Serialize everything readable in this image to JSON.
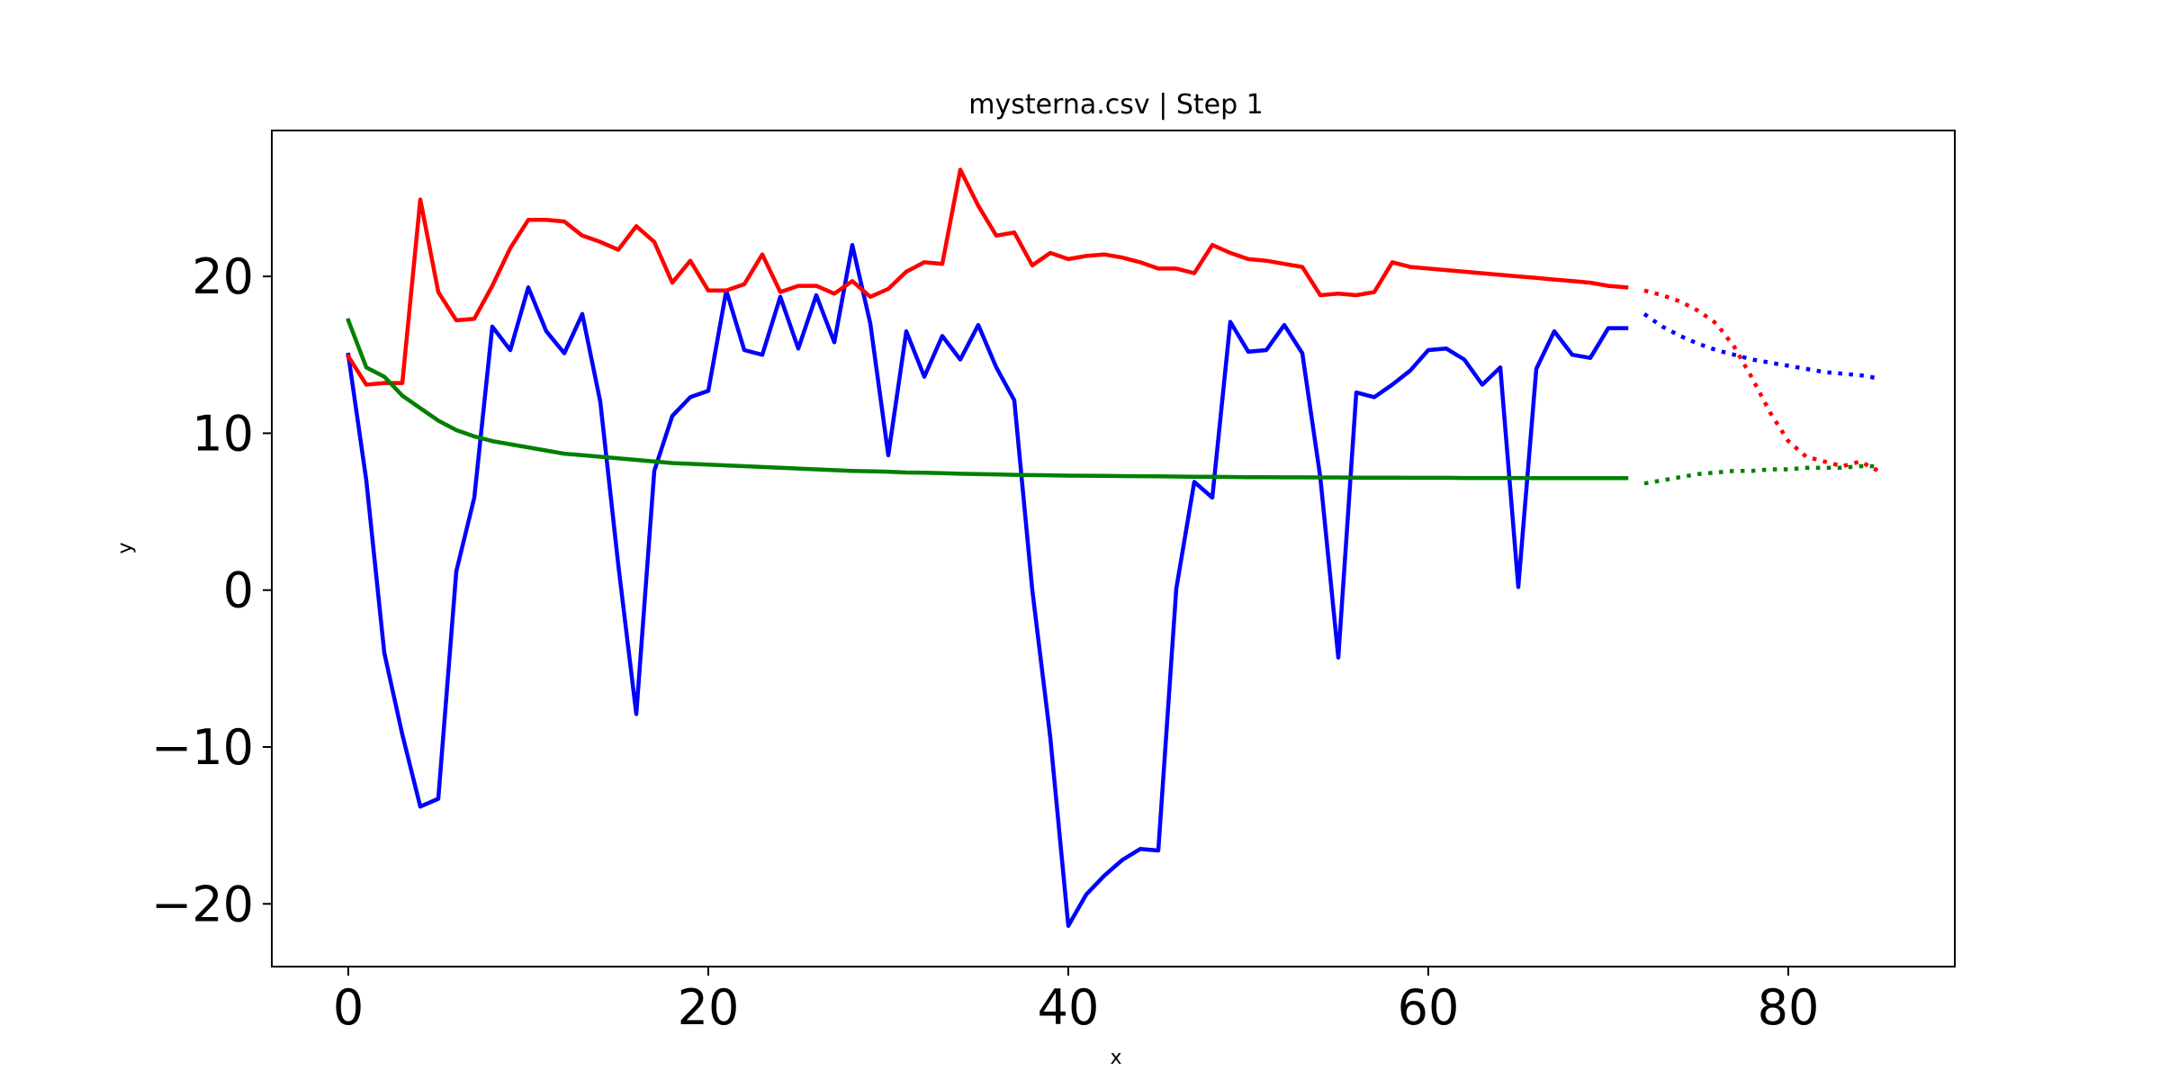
{
  "chart_data": {
    "type": "line",
    "title": "mysterna.csv | Step 1",
    "xlabel": "x",
    "ylabel": "y",
    "xlim": [
      -4.25,
      89.25
    ],
    "ylim": [
      -24,
      29.3
    ],
    "xticks": [
      0,
      20,
      40,
      60,
      80
    ],
    "yticks": [
      -20,
      -10,
      0,
      10,
      20
    ],
    "xtick_labels": [
      "0",
      "20",
      "40",
      "60",
      "80"
    ],
    "ytick_labels": [
      "−20",
      "−10",
      "0",
      "10",
      "20"
    ],
    "grid": false,
    "legend": false,
    "series": [
      {
        "color": "#0000ff",
        "style": "solid",
        "x": [
          0,
          1,
          2,
          3,
          4,
          5,
          6,
          7,
          8,
          9,
          10,
          11,
          12,
          13,
          14,
          15,
          16,
          17,
          18,
          19,
          20,
          21,
          22,
          23,
          24,
          25,
          26,
          27,
          28,
          29,
          30,
          31,
          32,
          33,
          34,
          35,
          36,
          37,
          38,
          39,
          40,
          41,
          42,
          43,
          44,
          45,
          46,
          47,
          48,
          49,
          50,
          51,
          52,
          53,
          54,
          55,
          56,
          57,
          58,
          59,
          60,
          61,
          62,
          63,
          64,
          65,
          66,
          67,
          68,
          69,
          70,
          71
        ],
        "y": [
          15,
          7,
          -4,
          -9.2,
          -13.8,
          -13.3,
          1.2,
          5.9,
          16.8,
          15.3,
          19.3,
          16.5,
          15.1,
          17.6,
          12,
          1.6,
          -7.9,
          7.6,
          11.1,
          12.3,
          12.7,
          19.1,
          15.3,
          15,
          18.7,
          15.4,
          18.8,
          15.8,
          22,
          17,
          8.6,
          16.5,
          13.6,
          16.2,
          14.7,
          16.9,
          14.2,
          12.1,
          0,
          -9.4,
          -21.4,
          -19.4,
          -18.2,
          -17.2,
          -16.5,
          -16.6,
          0.1,
          6.9,
          5.9,
          17.1,
          15.2,
          15.3,
          16.9,
          15.1,
          7.2,
          -4.3,
          12.6,
          12.3,
          13.1,
          14,
          15.3,
          15.4,
          14.7,
          13.1,
          14.2,
          0.2,
          14.1,
          16.5,
          15,
          14.8,
          16.7,
          16.7
        ]
      },
      {
        "color": "#0000ff",
        "style": "dotted",
        "x": [
          72,
          73,
          74,
          75,
          76,
          77,
          78,
          79,
          80,
          81,
          82,
          83,
          84,
          85
        ],
        "y": [
          17.6,
          16.8,
          16.2,
          15.7,
          15.3,
          15,
          14.7,
          14.5,
          14.3,
          14.1,
          13.9,
          13.8,
          13.7,
          13.5
        ]
      },
      {
        "color": "#ff0000",
        "style": "solid",
        "x": [
          0,
          1,
          2,
          3,
          4,
          5,
          6,
          7,
          8,
          9,
          10,
          11,
          12,
          13,
          14,
          15,
          16,
          17,
          18,
          19,
          20,
          21,
          22,
          23,
          24,
          25,
          26,
          27,
          28,
          29,
          30,
          31,
          32,
          33,
          34,
          35,
          36,
          37,
          38,
          39,
          40,
          41,
          42,
          43,
          44,
          45,
          46,
          47,
          48,
          49,
          50,
          51,
          52,
          53,
          54,
          55,
          56,
          57,
          58,
          59,
          60,
          61,
          62,
          63,
          64,
          65,
          66,
          67,
          68,
          69,
          70,
          71
        ],
        "y": [
          14.9,
          13.1,
          13.2,
          13.2,
          24.9,
          19,
          17.2,
          17.3,
          19.4,
          21.8,
          23.6,
          23.6,
          23.5,
          22.6,
          22.2,
          21.7,
          23.2,
          22.2,
          19.6,
          21,
          19.1,
          19.1,
          19.5,
          21.4,
          19,
          19.4,
          19.4,
          18.9,
          19.7,
          18.7,
          19.2,
          20.3,
          20.9,
          20.8,
          26.8,
          24.5,
          22.6,
          22.8,
          20.7,
          21.5,
          21.1,
          21.3,
          21.4,
          21.2,
          20.9,
          20.5,
          20.5,
          20.2,
          22,
          21.5,
          21.1,
          21,
          20.8,
          20.6,
          18.8,
          18.9,
          18.8,
          19,
          20.9,
          20.6,
          20.5,
          20.4,
          20.3,
          20.2,
          20.1,
          20,
          19.9,
          19.8,
          19.7,
          19.6,
          19.4,
          19.3
        ]
      },
      {
        "color": "#ff0000",
        "style": "dotted",
        "x": [
          72,
          73,
          74,
          75,
          76,
          77,
          78,
          79,
          80,
          81,
          82,
          83,
          84,
          85
        ],
        "y": [
          19.1,
          18.8,
          18.4,
          17.8,
          17,
          15.5,
          13.5,
          11.3,
          9.5,
          8.5,
          8.2,
          7.9,
          8.2,
          7.6
        ]
      },
      {
        "color": "#008000",
        "style": "solid",
        "x": [
          0,
          1,
          2,
          3,
          4,
          5,
          6,
          7,
          8,
          9,
          10,
          11,
          12,
          13,
          14,
          15,
          16,
          17,
          18,
          19,
          20,
          21,
          22,
          23,
          24,
          25,
          26,
          27,
          28,
          29,
          30,
          31,
          32,
          33,
          34,
          35,
          36,
          37,
          38,
          39,
          40,
          41,
          42,
          43,
          44,
          45,
          46,
          47,
          48,
          49,
          50,
          51,
          52,
          53,
          54,
          55,
          56,
          57,
          58,
          59,
          60,
          61,
          62,
          63,
          64,
          65,
          66,
          67,
          68,
          69,
          70,
          71
        ],
        "y": [
          17.2,
          14.2,
          13.6,
          12.4,
          11.6,
          10.8,
          10.2,
          9.8,
          9.5,
          9.3,
          9.1,
          8.9,
          8.7,
          8.6,
          8.5,
          8.4,
          8.3,
          8.2,
          8.1,
          8.05,
          8,
          7.95,
          7.9,
          7.85,
          7.8,
          7.75,
          7.7,
          7.65,
          7.6,
          7.58,
          7.55,
          7.5,
          7.48,
          7.45,
          7.42,
          7.4,
          7.38,
          7.35,
          7.33,
          7.32,
          7.3,
          7.29,
          7.28,
          7.27,
          7.26,
          7.25,
          7.24,
          7.23,
          7.22,
          7.21,
          7.2,
          7.2,
          7.19,
          7.19,
          7.18,
          7.18,
          7.17,
          7.17,
          7.17,
          7.16,
          7.16,
          7.16,
          7.15,
          7.15,
          7.15,
          7.15,
          7.14,
          7.14,
          7.14,
          7.14,
          7.14,
          7.14
        ]
      },
      {
        "color": "#008000",
        "style": "dotted",
        "x": [
          72,
          73,
          74,
          75,
          76,
          77,
          78,
          79,
          80,
          81,
          82,
          83,
          84,
          85
        ],
        "y": [
          6.8,
          7,
          7.2,
          7.4,
          7.5,
          7.6,
          7.6,
          7.7,
          7.7,
          7.8,
          7.8,
          7.8,
          7.9,
          7.9
        ]
      }
    ]
  }
}
